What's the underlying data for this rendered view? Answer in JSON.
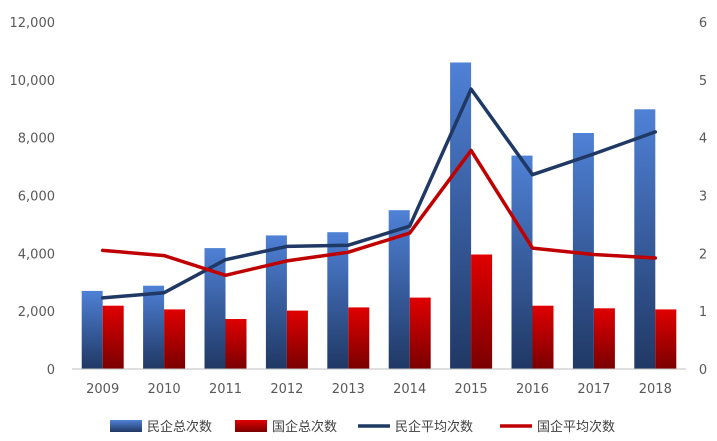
{
  "chart_data": {
    "type": "bar",
    "categories": [
      "2009",
      "2010",
      "2011",
      "2012",
      "2013",
      "2014",
      "2015",
      "2016",
      "2017",
      "2018"
    ],
    "series": [
      {
        "name": "民企总次数",
        "kind": "bar",
        "axis": "left",
        "color": "#4472C4",
        "values": [
          2700,
          2880,
          4180,
          4620,
          4730,
          5490,
          10600,
          7380,
          8160,
          8980
        ]
      },
      {
        "name": "国企总次数",
        "kind": "bar",
        "axis": "left",
        "color": "#C00000",
        "values": [
          2190,
          2060,
          1730,
          2020,
          2130,
          2470,
          3960,
          2190,
          2100,
          2060
        ]
      },
      {
        "name": "民企平均次数",
        "kind": "line",
        "axis": "right",
        "color": "#1F3864",
        "values": [
          1.23,
          1.32,
          1.89,
          2.12,
          2.14,
          2.47,
          4.84,
          3.36,
          3.72,
          4.1
        ]
      },
      {
        "name": "国企平均次数",
        "kind": "line",
        "axis": "right",
        "color": "#C00000",
        "values": [
          2.05,
          1.96,
          1.62,
          1.87,
          2.02,
          2.35,
          3.78,
          2.09,
          1.98,
          1.92
        ]
      }
    ],
    "y_left": {
      "min": 0,
      "max": 12000,
      "ticks": [
        "0",
        "2,000",
        "4,000",
        "6,000",
        "8,000",
        "10,000",
        "12,000"
      ]
    },
    "y_right": {
      "min": 0,
      "max": 6,
      "ticks": [
        "0",
        "1",
        "2",
        "3",
        "4",
        "5",
        "6"
      ]
    },
    "grid": false,
    "legend_position": "bottom"
  }
}
